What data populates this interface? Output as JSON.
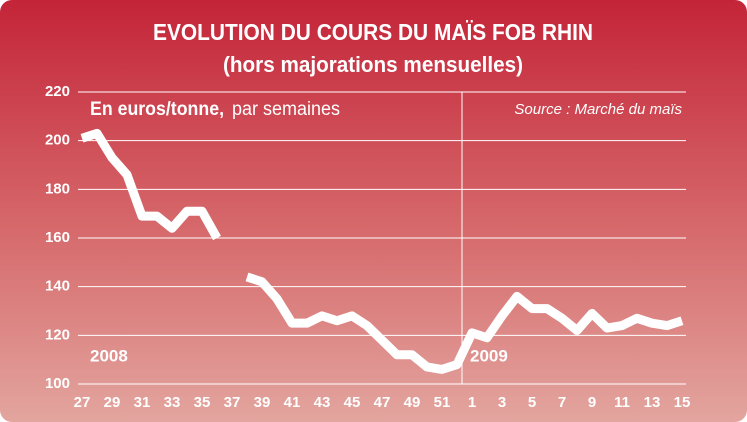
{
  "chart_data": {
    "type": "line",
    "title": "EVOLUTION DU COURS DU MAÏS FOB RHIN",
    "subtitle": "(hors majorations mensuelles)",
    "unit_label": "En euros/tonne,",
    "unit_note": "par semaines",
    "source": "Source : Marché du maïs",
    "year_labels": [
      "2008",
      "2009"
    ],
    "categories": [
      27,
      null,
      29,
      null,
      31,
      null,
      33,
      null,
      35,
      null,
      37,
      null,
      39,
      null,
      41,
      null,
      43,
      null,
      45,
      null,
      47,
      null,
      49,
      null,
      51,
      null,
      1,
      null,
      3,
      null,
      5,
      null,
      7,
      null,
      9,
      null,
      11,
      null,
      13,
      null,
      15
    ],
    "series": [
      {
        "color": "#ffffff",
        "values": [
          201,
          203,
          193,
          186,
          169,
          169,
          164,
          171,
          171,
          160,
          null,
          144,
          142,
          135,
          125,
          125,
          128,
          126,
          128,
          124,
          118,
          112,
          112,
          107,
          106,
          108,
          121,
          119,
          128,
          136,
          131,
          131,
          127,
          122,
          129,
          123,
          124,
          127,
          125,
          124,
          126
        ]
      }
    ],
    "ylim": [
      100,
      220
    ],
    "yticks": [
      100,
      120,
      140,
      160,
      180,
      200,
      220
    ],
    "grid": true
  }
}
